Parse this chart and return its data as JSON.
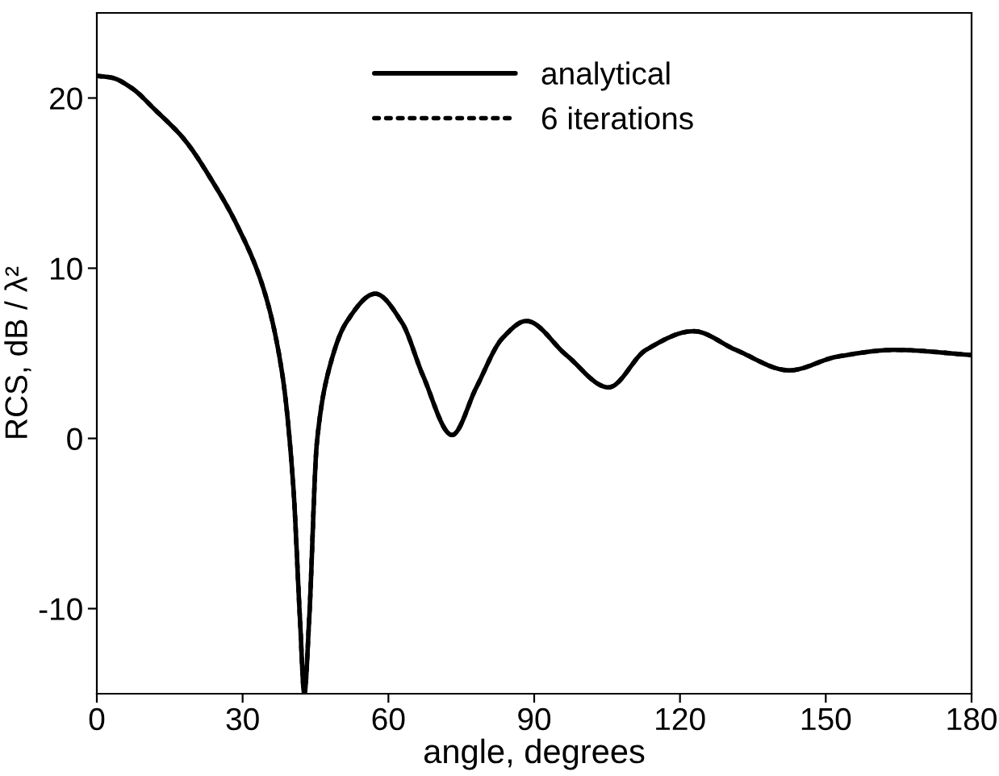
{
  "chart_data": {
    "type": "line",
    "xlabel": "angle, degrees",
    "ylabel": "RCS, dB / λ²",
    "xlim": [
      0,
      180
    ],
    "ylim": [
      -15,
      25
    ],
    "xticks": [
      0,
      30,
      60,
      90,
      120,
      150,
      180
    ],
    "yticks": [
      -10,
      0,
      10,
      20
    ],
    "grid": false,
    "legend": "top",
    "marker": "none",
    "series": [
      {
        "name": "analytical",
        "color": "#000000",
        "line_style": "solid",
        "x": [
          0,
          3,
          7.1,
          12,
          17.9,
          24,
          28.9,
          34.4,
          38.2,
          40.4,
          41.8,
          42.7,
          43.7,
          45.3,
          48.0,
          51.3,
          57.3,
          62.8,
          67.1,
          73.1,
          78.1,
          83.5,
          88.4,
          96.6,
          105.3,
          113.0,
          122.8,
          131.5,
          142.5,
          152.3,
          164.3,
          180
        ],
        "values": [
          21.3,
          21.2,
          20.6,
          19.3,
          17.6,
          15.0,
          12.5,
          8.7,
          3.7,
          -2.7,
          -10.6,
          -15,
          -10.6,
          -0.2,
          4.3,
          6.8,
          8.5,
          6.8,
          3.7,
          0.2,
          3.0,
          5.9,
          6.9,
          4.9,
          3.0,
          5.2,
          6.3,
          5.2,
          4.0,
          4.8,
          5.2,
          4.9
        ]
      },
      {
        "name": "6 iterations",
        "color": "#000000",
        "line_style": "dotted",
        "x": [
          0,
          3,
          7.1,
          12,
          17.9,
          24,
          28.9,
          34.4,
          38.2,
          40.4,
          41.8,
          42.7,
          43.7,
          45.3,
          48.0,
          51.3,
          57.3,
          62.8,
          67.1,
          73.1,
          78.1,
          83.5,
          88.4,
          96.6,
          105.3,
          113.0,
          122.8,
          131.5,
          142.5,
          152.3,
          164.3,
          180
        ],
        "values": [
          21.3,
          21.2,
          20.6,
          19.3,
          17.6,
          15.0,
          12.5,
          8.7,
          3.7,
          -2.7,
          -10.6,
          -15,
          -10.6,
          -0.2,
          4.3,
          6.8,
          8.5,
          6.8,
          3.7,
          0.2,
          3.0,
          5.9,
          6.9,
          4.9,
          3.0,
          5.2,
          6.3,
          5.2,
          4.0,
          4.8,
          5.2,
          4.9
        ]
      }
    ]
  }
}
